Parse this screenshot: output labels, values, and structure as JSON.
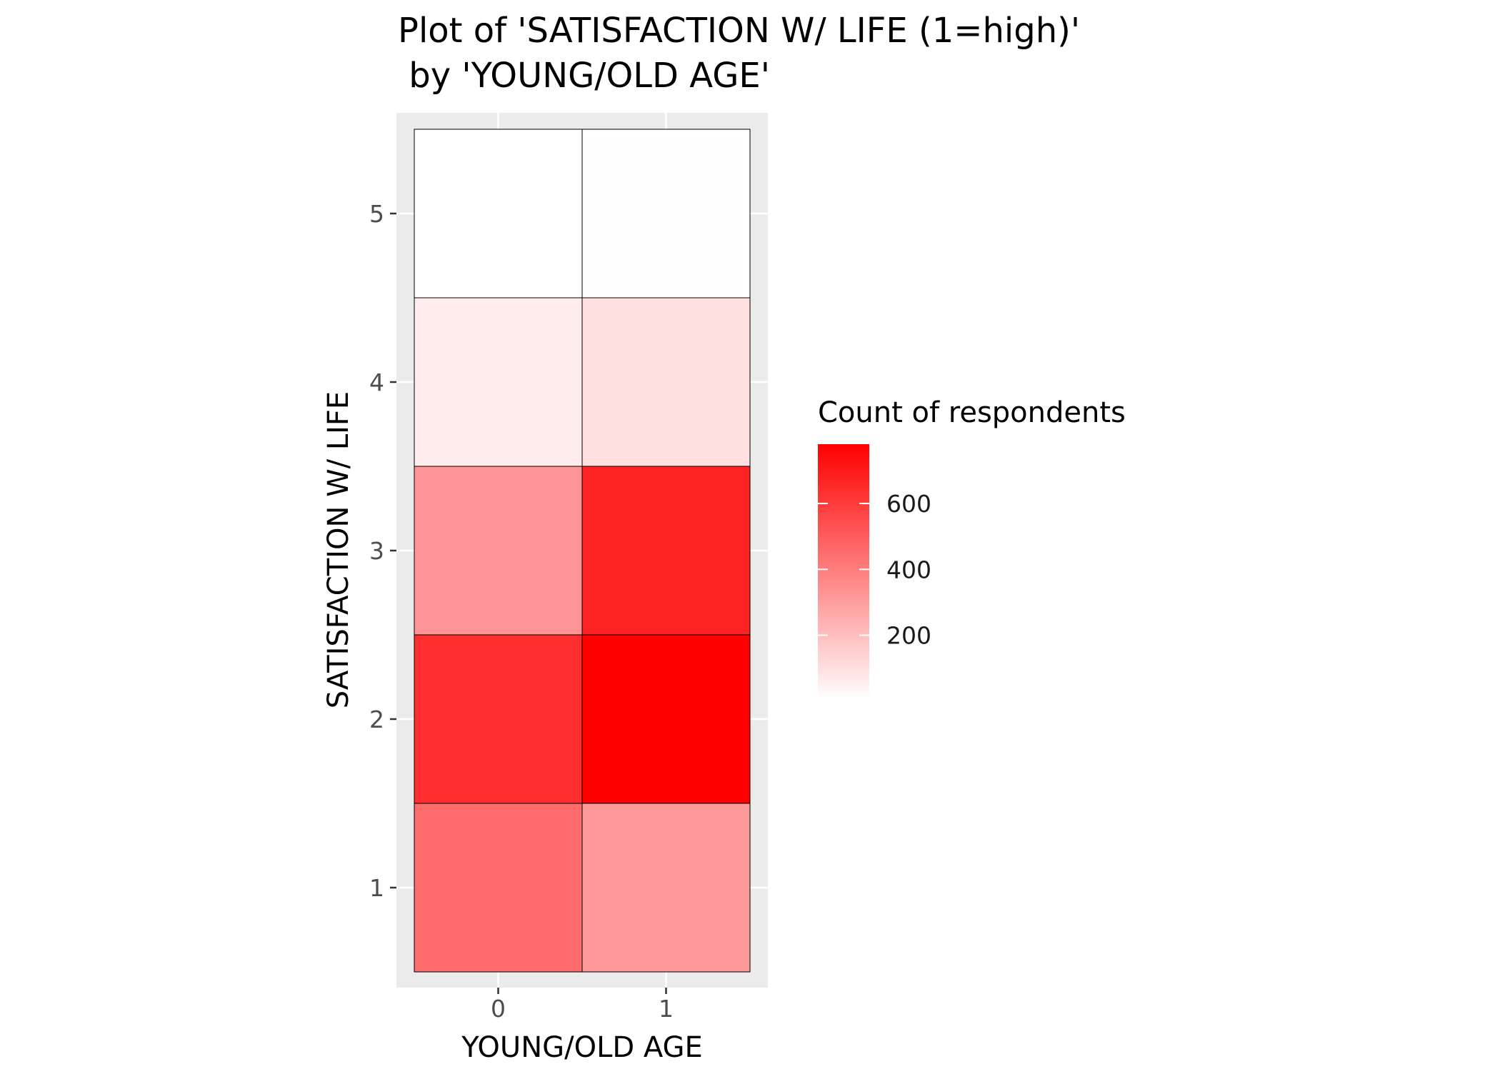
{
  "chart_data": {
    "type": "heatmap",
    "title_lines": [
      "Plot of 'SATISFACTION W/ LIFE (1=high)'",
      " by 'YOUNG/OLD AGE'"
    ],
    "xlabel": "YOUNG/OLD AGE",
    "ylabel": "SATISFACTION W/ LIFE",
    "x_categories": [
      "0",
      "1"
    ],
    "y_categories": [
      "1",
      "2",
      "3",
      "4",
      "5"
    ],
    "cells": [
      {
        "x": "0",
        "y": "1",
        "value": 450
      },
      {
        "x": "0",
        "y": "2",
        "value": 640
      },
      {
        "x": "0",
        "y": "3",
        "value": 330
      },
      {
        "x": "0",
        "y": "4",
        "value": 60
      },
      {
        "x": "0",
        "y": "5",
        "value": 4
      },
      {
        "x": "1",
        "y": "1",
        "value": 310
      },
      {
        "x": "1",
        "y": "2",
        "value": 780
      },
      {
        "x": "1",
        "y": "3",
        "value": 670
      },
      {
        "x": "1",
        "y": "4",
        "value": 100
      },
      {
        "x": "1",
        "y": "5",
        "value": 10
      }
    ],
    "legend": {
      "title": "Count of respondents",
      "ticks": [
        200,
        400,
        600
      ],
      "range": [
        4,
        780
      ],
      "low_color": "#ffffff",
      "high_color": "#ff0000",
      "placement": "right"
    },
    "grid": true,
    "panel_background": "#ebebeb",
    "cell_border_color": "#000000"
  }
}
